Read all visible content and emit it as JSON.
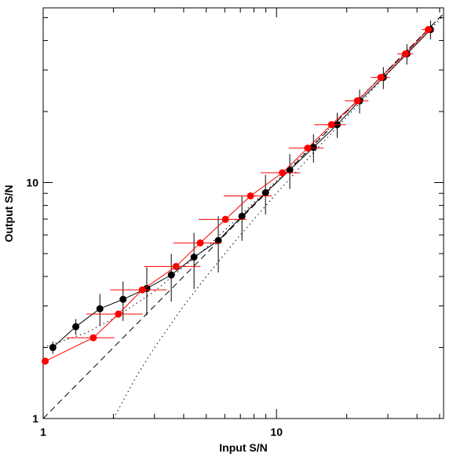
{
  "chart_data": {
    "type": "scatter",
    "xlabel": "Input S/N",
    "ylabel": "Output S/N",
    "xscale": "log",
    "yscale": "log",
    "xlim": [
      1,
      52
    ],
    "ylim": [
      1,
      55
    ],
    "xticks": [
      1,
      10
    ],
    "yticks": [
      1,
      10
    ],
    "xminorticks": [
      2,
      3,
      4,
      5,
      6,
      7,
      8,
      9,
      20,
      30,
      40,
      50
    ],
    "yminorticks": [
      2,
      3,
      4,
      5,
      6,
      7,
      8,
      9,
      20,
      30,
      40,
      50
    ],
    "series": [
      {
        "color": "#000000",
        "x": [
          1.1,
          1.38,
          1.75,
          2.2,
          2.78,
          3.54,
          4.43,
          5.63,
          7.11,
          8.97,
          11.4,
          14.4,
          18.2,
          22.7,
          28.7,
          36.2,
          45.7
        ],
        "values": [
          2.0,
          2.45,
          2.92,
          3.2,
          3.56,
          4.06,
          4.83,
          5.68,
          7.2,
          9.05,
          11.3,
          14.1,
          17.6,
          22.2,
          27.9,
          35.1,
          44.5
        ],
        "yerr": [
          0.12,
          0.19,
          0.45,
          0.61,
          0.82,
          0.93,
          1.29,
          1.52,
          1.54,
          1.73,
          1.9,
          1.94,
          2.15,
          2.55,
          2.99,
          3.49,
          4.09
        ]
      },
      {
        "color": "#ff0000",
        "x": [
          1.02,
          1.64,
          2.1,
          2.66,
          3.71,
          4.71,
          6.04,
          7.74,
          10.6,
          13.6,
          17.2,
          22.2,
          28.0,
          35.7,
          44.7
        ],
        "values": [
          1.75,
          2.2,
          2.77,
          3.51,
          4.41,
          5.55,
          6.98,
          8.78,
          11.0,
          14.0,
          17.6,
          22.2,
          27.9,
          35.1,
          44.5
        ],
        "xerr": [
          0,
          0.38,
          0.57,
          0.72,
          1.01,
          1.1,
          1.4,
          1.8,
          2.05,
          2.32,
          2.67,
          2.58,
          2.6,
          2.77,
          2.77
        ]
      }
    ],
    "reference_lines": [
      {
        "style": "dashed",
        "x": [
          1,
          52
        ],
        "values": [
          1,
          52
        ]
      },
      {
        "style": "dotted",
        "x": [
          2,
          2.5,
          3,
          4,
          5,
          7,
          10,
          15,
          20,
          30,
          52
        ],
        "values": [
          1,
          1.5,
          2,
          3,
          4,
          6,
          9,
          14,
          19,
          29,
          51
        ]
      },
      {
        "style": "dotted",
        "x": [
          1,
          1.5,
          2,
          3,
          5,
          10,
          20,
          52
        ],
        "values": [
          2,
          2.29,
          2.65,
          3.46,
          5.29,
          10.15,
          20.07,
          52.03
        ]
      }
    ]
  }
}
